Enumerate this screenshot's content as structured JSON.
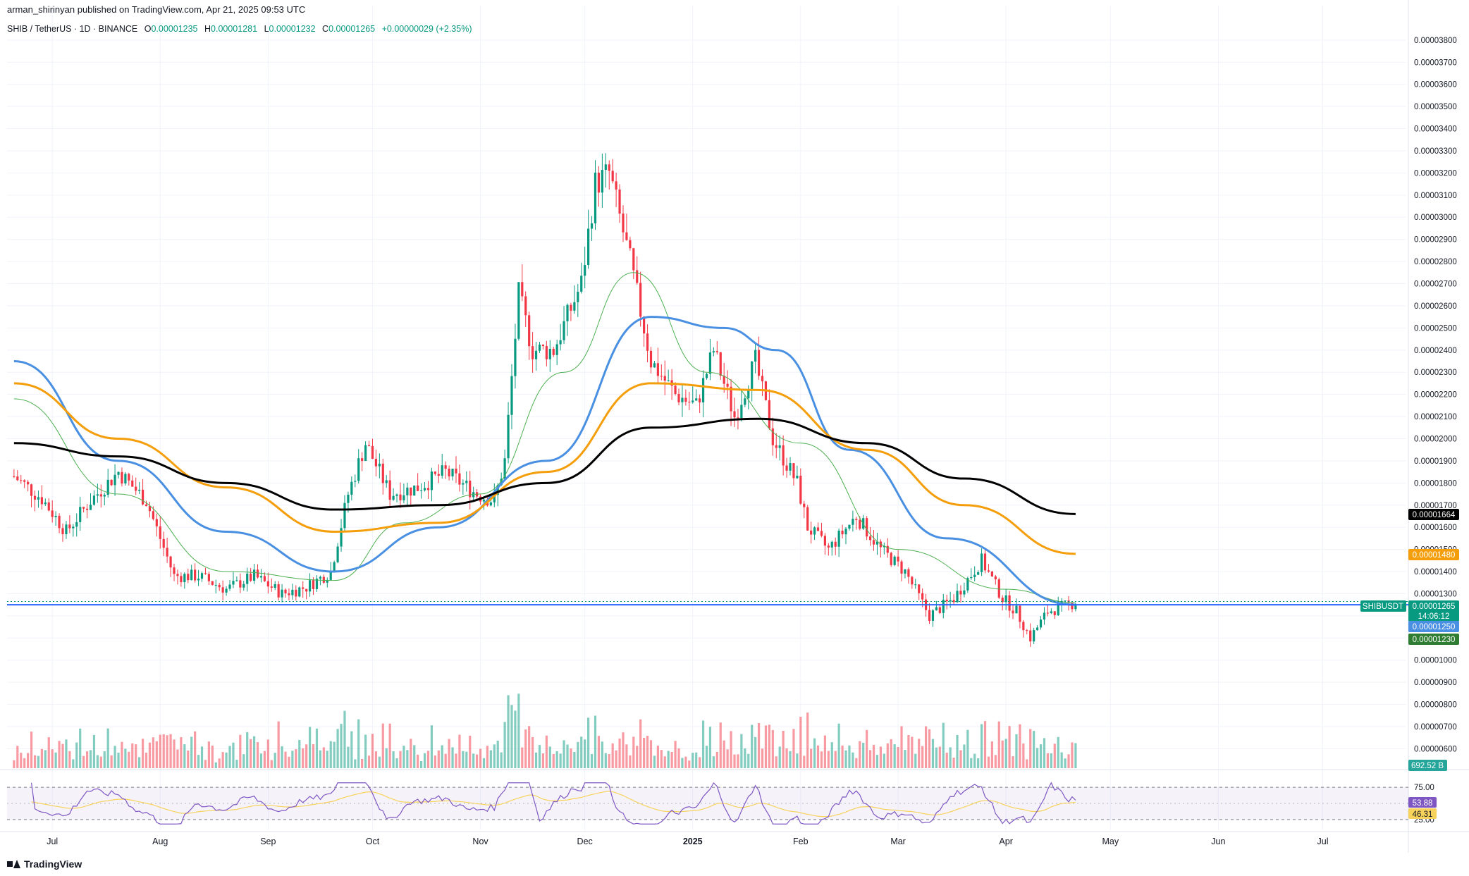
{
  "header": {
    "publisher_line": "arman_shirinyan published on TradingView.com, Apr 21, 2025 09:53 UTC",
    "symbol": "SHIB / TetherUS · 1D · BINANCE",
    "open_label": "O",
    "open": "0.00001235",
    "high_label": "H",
    "high": "0.00001281",
    "low_label": "L",
    "low": "0.00001232",
    "close_label": "C",
    "close": "0.00001265",
    "change": "+0.00000029 (+2.35%)"
  },
  "footer": {
    "brand": "TradingView"
  },
  "colors": {
    "up": "#089981",
    "down": "#f23645",
    "ema_fast": "#4caf50",
    "ema_mid": "#4a90e2",
    "ema_slow": "#f59e0b",
    "ema_long": "#000000",
    "support": "#2962ff",
    "rsi": "#7e57c2",
    "rsi_ma": "#f7d35c"
  },
  "chart_data": {
    "type": "candlestick",
    "symbol": "SHIBUSDT",
    "timeframe": "1D",
    "x_ticks": [
      "Jul",
      "Aug",
      "Sep",
      "Oct",
      "Nov",
      "Dec",
      "2025",
      "Feb",
      "Mar",
      "Apr",
      "May",
      "Jun",
      "Jul"
    ],
    "y_ticks": [
      "0.00003800",
      "0.00003700",
      "0.00003600",
      "0.00003500",
      "0.00003400",
      "0.00003300",
      "0.00003200",
      "0.00003100",
      "0.00003000",
      "0.00002900",
      "0.00002800",
      "0.00002700",
      "0.00002600",
      "0.00002500",
      "0.00002400",
      "0.00002300",
      "0.00002200",
      "0.00002100",
      "0.00002000",
      "0.00001900",
      "0.00001800",
      "0.00001700",
      "0.00001600",
      "0.00001500",
      "0.00001400",
      "0.00001300",
      "0.00001200",
      "0.00001100",
      "0.00001000",
      "0.00000900",
      "0.00000800",
      "0.00000700",
      "0.00000600"
    ],
    "ylim": [
      5.6e-06,
      3.86e-05
    ],
    "price_path": [
      [
        "2024-06-20",
        1.83e-05
      ],
      [
        "2024-06-28",
        1.73e-05
      ],
      [
        "2024-07-05",
        1.58e-05
      ],
      [
        "2024-07-12",
        1.72e-05
      ],
      [
        "2024-07-20",
        1.85e-05
      ],
      [
        "2024-07-28",
        1.72e-05
      ],
      [
        "2024-08-05",
        1.38e-05
      ],
      [
        "2024-08-12",
        1.38e-05
      ],
      [
        "2024-08-20",
        1.32e-05
      ],
      [
        "2024-08-28",
        1.38e-05
      ],
      [
        "2024-09-05",
        1.3e-05
      ],
      [
        "2024-09-12",
        1.33e-05
      ],
      [
        "2024-09-19",
        1.4e-05
      ],
      [
        "2024-09-24",
        1.75e-05
      ],
      [
        "2024-09-29",
        1.98e-05
      ],
      [
        "2024-10-06",
        1.75e-05
      ],
      [
        "2024-10-14",
        1.78e-05
      ],
      [
        "2024-10-22",
        1.85e-05
      ],
      [
        "2024-10-31",
        1.75e-05
      ],
      [
        "2024-11-05",
        1.72e-05
      ],
      [
        "2024-11-08",
        1.9e-05
      ],
      [
        "2024-11-12",
        2.65e-05
      ],
      [
        "2024-11-16",
        2.4e-05
      ],
      [
        "2024-11-22",
        2.4e-05
      ],
      [
        "2024-11-30",
        2.7e-05
      ],
      [
        "2024-12-04",
        3.15e-05
      ],
      [
        "2024-12-08",
        3.2e-05
      ],
      [
        "2024-12-14",
        2.8e-05
      ],
      [
        "2024-12-20",
        2.35e-05
      ],
      [
        "2024-12-27",
        2.2e-05
      ],
      [
        "2025-01-02",
        2.15e-05
      ],
      [
        "2025-01-07",
        2.4e-05
      ],
      [
        "2025-01-13",
        2.1e-05
      ],
      [
        "2025-01-19",
        2.35e-05
      ],
      [
        "2025-01-24",
        2e-05
      ],
      [
        "2025-01-31",
        1.8e-05
      ],
      [
        "2025-02-03",
        1.6e-05
      ],
      [
        "2025-02-09",
        1.5e-05
      ],
      [
        "2025-02-17",
        1.65e-05
      ],
      [
        "2025-02-24",
        1.5e-05
      ],
      [
        "2025-03-03",
        1.4e-05
      ],
      [
        "2025-03-10",
        1.2e-05
      ],
      [
        "2025-03-17",
        1.28e-05
      ],
      [
        "2025-03-25",
        1.45e-05
      ],
      [
        "2025-03-31",
        1.28e-05
      ],
      [
        "2025-04-04",
        1.22e-05
      ],
      [
        "2025-04-08",
        1.1e-05
      ],
      [
        "2025-04-13",
        1.22e-05
      ],
      [
        "2025-04-21",
        1.26e-05
      ]
    ],
    "moving_averages": [
      {
        "color": "#4caf50",
        "points": [
          [
            "2024-06-20",
            2.18e-05
          ],
          [
            "2024-07-20",
            1.75e-05
          ],
          [
            "2024-08-20",
            1.4e-05
          ],
          [
            "2024-09-20",
            1.36e-05
          ],
          [
            "2024-10-10",
            1.62e-05
          ],
          [
            "2024-11-01",
            1.75e-05
          ],
          [
            "2024-11-25",
            2.3e-05
          ],
          [
            "2024-12-15",
            2.75e-05
          ],
          [
            "2025-01-05",
            2.3e-05
          ],
          [
            "2025-02-01",
            1.98e-05
          ],
          [
            "2025-03-01",
            1.5e-05
          ],
          [
            "2025-04-01",
            1.32e-05
          ],
          [
            "2025-04-21",
            1.26e-05
          ]
        ]
      },
      {
        "color": "#4a90e2",
        "points": [
          [
            "2024-06-20",
            2.35e-05
          ],
          [
            "2024-07-20",
            1.9e-05
          ],
          [
            "2024-08-20",
            1.58e-05
          ],
          [
            "2024-09-20",
            1.4e-05
          ],
          [
            "2024-10-20",
            1.6e-05
          ],
          [
            "2024-11-20",
            1.9e-05
          ],
          [
            "2024-12-20",
            2.55e-05
          ],
          [
            "2025-01-10",
            2.5e-05
          ],
          [
            "2025-01-25",
            2.4e-05
          ],
          [
            "2025-02-15",
            1.95e-05
          ],
          [
            "2025-03-15",
            1.55e-05
          ],
          [
            "2025-04-21",
            1.25e-05
          ]
        ]
      },
      {
        "color": "#f59e0b",
        "points": [
          [
            "2024-06-20",
            2.25e-05
          ],
          [
            "2024-07-20",
            2e-05
          ],
          [
            "2024-08-20",
            1.78e-05
          ],
          [
            "2024-09-20",
            1.58e-05
          ],
          [
            "2024-10-20",
            1.62e-05
          ],
          [
            "2024-11-20",
            1.85e-05
          ],
          [
            "2024-12-20",
            2.25e-05
          ],
          [
            "2025-01-20",
            2.22e-05
          ],
          [
            "2025-02-20",
            1.95e-05
          ],
          [
            "2025-03-20",
            1.7e-05
          ],
          [
            "2025-04-21",
            1.48e-05
          ]
        ]
      },
      {
        "color": "#000000",
        "points": [
          [
            "2024-06-20",
            1.98e-05
          ],
          [
            "2024-07-20",
            1.92e-05
          ],
          [
            "2024-08-20",
            1.8e-05
          ],
          [
            "2024-09-20",
            1.68e-05
          ],
          [
            "2024-10-20",
            1.7e-05
          ],
          [
            "2024-11-20",
            1.8e-05
          ],
          [
            "2024-12-20",
            2.05e-05
          ],
          [
            "2025-01-20",
            2.09e-05
          ],
          [
            "2025-02-20",
            1.98e-05
          ],
          [
            "2025-03-20",
            1.82e-05
          ],
          [
            "2025-04-21",
            1.66e-05
          ]
        ]
      }
    ],
    "support_level": 1.25e-05,
    "price_labels": [
      {
        "text": "0.00001664",
        "value": 1.664e-05,
        "color": "#000000"
      },
      {
        "text": "0.00001480",
        "value": 1.48e-05,
        "color": "#f59e0b"
      },
      {
        "text": "0.00001265",
        "value": 1.265e-05,
        "color": "#089981"
      },
      {
        "text": "14:06:12",
        "value": null,
        "color": "#089981"
      },
      {
        "text": "0.00001250",
        "value": 1.25e-05,
        "color": "#4a90e2"
      },
      {
        "text": "0.00001230",
        "value": 1.23e-05,
        "color": "#2e7d32"
      }
    ],
    "symbol_tag": "SHIBUSDT",
    "volume_label": "692.52 B",
    "rsi": {
      "levels": [
        "75.00",
        "25.00"
      ],
      "level_values": [
        75,
        25
      ],
      "value": "53.88",
      "value_num": 53.88,
      "ma": "46.31",
      "ma_num": 46.31
    }
  }
}
